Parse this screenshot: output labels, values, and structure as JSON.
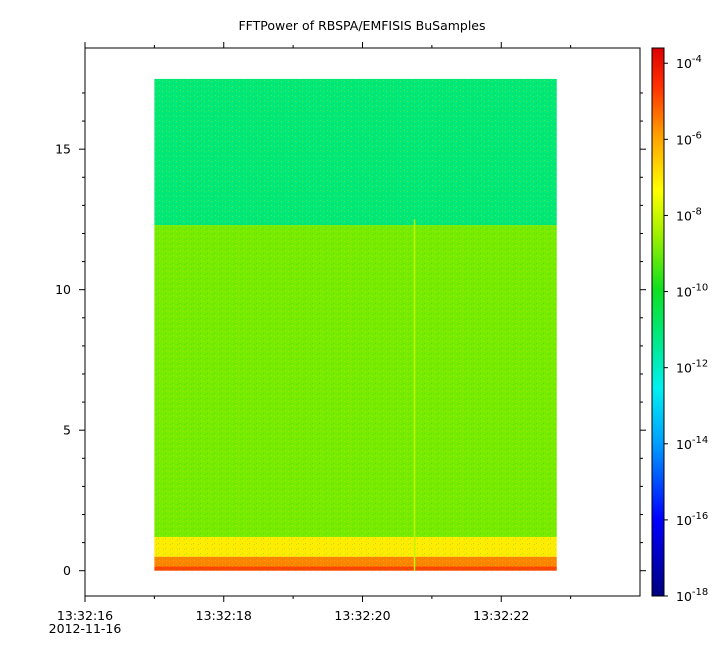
{
  "chart_data": {
    "type": "heatmap",
    "title": "FFTPower of RBSPA/EMFISIS  BuSamples",
    "xlabel": "",
    "ylabel": "",
    "x_time_range": [
      "13:32:17.0",
      "13:32:22.8"
    ],
    "xlim": [
      "13:32:16.0",
      "13:32:24.0"
    ],
    "x_ticks": [
      {
        "label": "13:32:16",
        "sublabel": "2012-11-16",
        "time_s": 16
      },
      {
        "label": "13:32:18",
        "sublabel": "",
        "time_s": 18
      },
      {
        "label": "13:32:20",
        "sublabel": "",
        "time_s": 20
      },
      {
        "label": "13:32:22",
        "sublabel": "",
        "time_s": 22
      }
    ],
    "x_minor_ticks_s": [
      17,
      19,
      21,
      23
    ],
    "ylim": [
      -0.9,
      18.6
    ],
    "y_ticks": [
      0,
      5,
      10,
      15
    ],
    "y_data_range": [
      0,
      17.5
    ],
    "colorbar": {
      "scale": "log",
      "range": [
        -18,
        -3.6
      ],
      "ticks": [
        {
          "base": "10",
          "exponent": "-4",
          "value": -4
        },
        {
          "base": "10",
          "exponent": "-6",
          "value": -6
        },
        {
          "base": "10",
          "exponent": "-8",
          "value": -8
        },
        {
          "base": "10",
          "exponent": "-10",
          "value": -10
        },
        {
          "base": "10",
          "exponent": "-12",
          "value": -12
        },
        {
          "base": "10",
          "exponent": "-14",
          "value": -14
        },
        {
          "base": "10",
          "exponent": "-16",
          "value": -16
        },
        {
          "base": "10",
          "exponent": "-18",
          "value": -18
        }
      ]
    },
    "bands": [
      {
        "y_from": 0.0,
        "y_to": 0.15,
        "log10_power": -5.6
      },
      {
        "y_from": 0.15,
        "y_to": 0.5,
        "log10_power": -6.6
      },
      {
        "y_from": 0.5,
        "y_to": 1.2,
        "log10_power": -8.2
      },
      {
        "y_from": 1.2,
        "y_to": 12.3,
        "log10_power": -9.6
      },
      {
        "y_from": 12.3,
        "y_to": 17.5,
        "log10_power": -11.6
      }
    ],
    "spike": {
      "time_s": 20.75,
      "y_from": 0,
      "y_to": 12.5,
      "log10_power": -9.0
    },
    "grid": false,
    "legend": "none"
  }
}
